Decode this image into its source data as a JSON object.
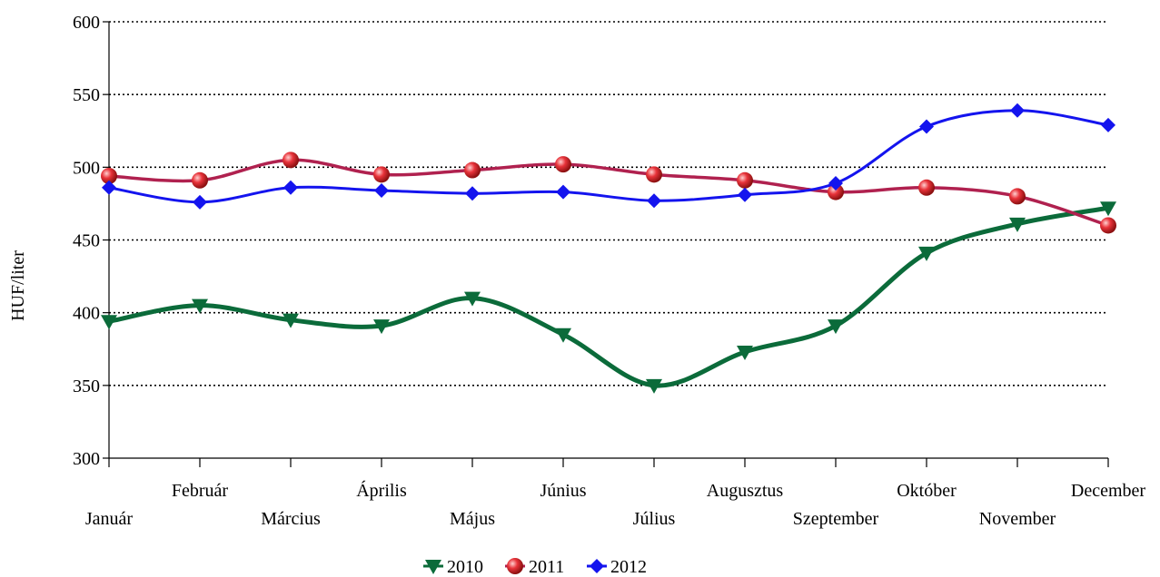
{
  "chart_data": {
    "type": "line",
    "ylabel": "HUF/liter",
    "xlabel": "",
    "title": "",
    "ylim": [
      300,
      600
    ],
    "yticks": [
      300,
      350,
      400,
      450,
      500,
      550,
      600
    ],
    "grid": "horizontal dotted",
    "legend_position": "bottom-center",
    "categories": [
      "Január",
      "Február",
      "Március",
      "Április",
      "Május",
      "Június",
      "Július",
      "Augusztus",
      "Szeptember",
      "Október",
      "November",
      "December"
    ],
    "series": [
      {
        "name": "2010",
        "color": "#0b6b3a",
        "marker": "triangle-down",
        "values": [
          394,
          405,
          395,
          391,
          410,
          385,
          350,
          373,
          391,
          441,
          461,
          472
        ]
      },
      {
        "name": "2011",
        "color": "#b0214f",
        "marker": "sphere",
        "markerColor": "#e8333a",
        "values": [
          494,
          491,
          505,
          495,
          498,
          502,
          495,
          491,
          483,
          486,
          480,
          460
        ]
      },
      {
        "name": "2012",
        "color": "#1414ee",
        "marker": "diamond",
        "values": [
          486,
          476,
          486,
          484,
          482,
          483,
          477,
          481,
          489,
          528,
          539,
          529
        ]
      }
    ]
  }
}
